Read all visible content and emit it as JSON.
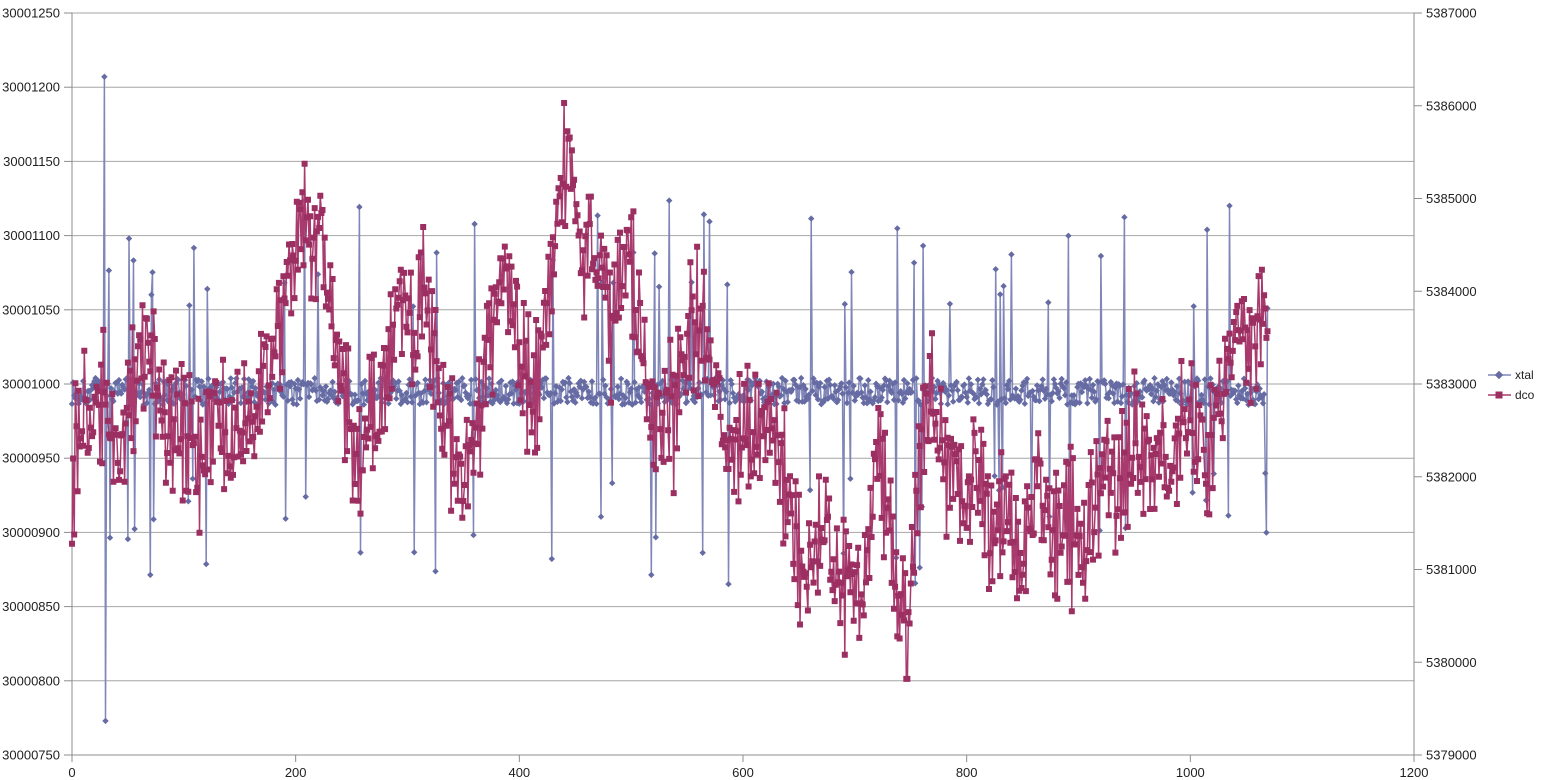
{
  "chart_data": {
    "type": "line",
    "title": "",
    "legend": {
      "position": "right",
      "entries": [
        "xtal",
        "dco"
      ]
    },
    "x_axis": {
      "min": 0,
      "max": 1200,
      "tick_step": 200,
      "ticks": [
        "0",
        "200",
        "400",
        "600",
        "800",
        "1000",
        "1200"
      ],
      "gridlines": false
    },
    "y_axis_left": {
      "series": "xtal",
      "min": 30000750,
      "max": 30001250,
      "tick_step": 50,
      "ticks": [
        "30001250",
        "30001200",
        "30001150",
        "30001100",
        "30001050",
        "30001000",
        "30000950",
        "30000900",
        "30000850",
        "30000800",
        "30000750"
      ],
      "gridlines": true
    },
    "y_axis_right": {
      "series": "dco",
      "min": 5379000,
      "max": 5387000,
      "tick_step": 1000,
      "ticks": [
        "5387000",
        "5386000",
        "5385000",
        "5384000",
        "5383000",
        "5382000",
        "5381000",
        "5380000",
        "5379000"
      ],
      "gridlines": false
    },
    "n_points": 1070,
    "series": [
      {
        "name": "xtal",
        "axis": "left",
        "marker": "diamond",
        "color": "#8087B8",
        "marker_color": "#666CA3",
        "description": "flat noisy band centered near 30000995 (±10) with frequent paired vertical spikes of ±60-130; extreme outlier pair near x=29 reaching 30001207 up and 30000773 down",
        "gen": {
          "baseline": 30000995,
          "noise_amplitude": 9,
          "spike_prob_low_x": 0.03,
          "spike_prob_high_x": 0.055,
          "spike_boost_from": 560,
          "spike_mag_min": 55,
          "spike_mag_max": 130,
          "pair_probability": 0.75,
          "seed": 20121,
          "outliers": [
            {
              "x": 29,
              "value": 30001207
            },
            {
              "x": 30,
              "value": 30000773
            }
          ]
        }
      },
      {
        "name": "dco",
        "axis": "right",
        "marker": "square",
        "color": "#A83A6E",
        "marker_color": "#9C2F62",
        "description": "strongly oscillating series (~±700 point-to-point) around a wandering midline; maximum ~5386030 near x=440, minimum ~5379820 near x=746, broad low region 650-950, rising again after 1030",
        "gen": {
          "osc_amplitude": 620,
          "osc_alternation": -0.38,
          "seed": 77001,
          "clamp_min": 5379820,
          "clamp_max": 5386030,
          "outliers": [
            {
              "x": 440,
              "value": 5386030
            },
            {
              "x": 746,
              "value": 5379820
            }
          ],
          "midline_anchors": [
            [
              0,
              5381800
            ],
            [
              8,
              5382800
            ],
            [
              18,
              5382300
            ],
            [
              30,
              5382900
            ],
            [
              42,
              5382300
            ],
            [
              55,
              5382900
            ],
            [
              65,
              5383400
            ],
            [
              75,
              5383100
            ],
            [
              85,
              5382500
            ],
            [
              95,
              5382700
            ],
            [
              105,
              5382300
            ],
            [
              115,
              5382200
            ],
            [
              128,
              5382800
            ],
            [
              140,
              5382400
            ],
            [
              150,
              5382700
            ],
            [
              160,
              5382300
            ],
            [
              170,
              5382900
            ],
            [
              180,
              5383400
            ],
            [
              190,
              5383900
            ],
            [
              200,
              5384500
            ],
            [
              208,
              5384900
            ],
            [
              215,
              5384500
            ],
            [
              222,
              5384800
            ],
            [
              230,
              5383800
            ],
            [
              240,
              5383100
            ],
            [
              250,
              5382400
            ],
            [
              258,
              5382000
            ],
            [
              266,
              5382900
            ],
            [
              274,
              5382400
            ],
            [
              282,
              5383300
            ],
            [
              290,
              5383600
            ],
            [
              298,
              5384000
            ],
            [
              306,
              5383500
            ],
            [
              314,
              5384000
            ],
            [
              322,
              5383600
            ],
            [
              330,
              5382800
            ],
            [
              338,
              5382400
            ],
            [
              348,
              5381900
            ],
            [
              358,
              5382400
            ],
            [
              368,
              5383000
            ],
            [
              378,
              5383700
            ],
            [
              388,
              5384200
            ],
            [
              396,
              5383800
            ],
            [
              404,
              5383100
            ],
            [
              412,
              5382800
            ],
            [
              420,
              5383400
            ],
            [
              430,
              5384300
            ],
            [
              438,
              5385300
            ],
            [
              444,
              5385500
            ],
            [
              450,
              5384700
            ],
            [
              458,
              5384300
            ],
            [
              466,
              5384600
            ],
            [
              474,
              5384100
            ],
            [
              482,
              5383600
            ],
            [
              490,
              5384200
            ],
            [
              498,
              5384600
            ],
            [
              506,
              5383700
            ],
            [
              514,
              5382900
            ],
            [
              522,
              5382500
            ],
            [
              530,
              5382800
            ],
            [
              538,
              5382600
            ],
            [
              546,
              5383100
            ],
            [
              554,
              5383600
            ],
            [
              562,
              5383800
            ],
            [
              570,
              5383400
            ],
            [
              578,
              5382800
            ],
            [
              586,
              5382400
            ],
            [
              594,
              5382300
            ],
            [
              602,
              5382600
            ],
            [
              610,
              5382400
            ],
            [
              618,
              5382700
            ],
            [
              626,
              5382500
            ],
            [
              634,
              5382100
            ],
            [
              642,
              5381600
            ],
            [
              650,
              5381100
            ],
            [
              658,
              5380900
            ],
            [
              666,
              5381200
            ],
            [
              674,
              5381500
            ],
            [
              682,
              5381100
            ],
            [
              690,
              5380900
            ],
            [
              698,
              5380700
            ],
            [
              706,
              5380800
            ],
            [
              714,
              5381500
            ],
            [
              722,
              5382200
            ],
            [
              730,
              5381500
            ],
            [
              738,
              5380900
            ],
            [
              746,
              5380300
            ],
            [
              752,
              5381200
            ],
            [
              760,
              5382400
            ],
            [
              768,
              5383000
            ],
            [
              776,
              5382500
            ],
            [
              784,
              5381900
            ],
            [
              792,
              5382100
            ],
            [
              800,
              5381700
            ],
            [
              808,
              5382200
            ],
            [
              816,
              5381700
            ],
            [
              824,
              5381300
            ],
            [
              832,
              5381700
            ],
            [
              840,
              5381400
            ],
            [
              848,
              5381100
            ],
            [
              856,
              5381600
            ],
            [
              864,
              5382000
            ],
            [
              872,
              5381600
            ],
            [
              880,
              5381300
            ],
            [
              888,
              5381700
            ],
            [
              896,
              5381400
            ],
            [
              904,
              5381200
            ],
            [
              912,
              5381600
            ],
            [
              920,
              5381900
            ],
            [
              928,
              5382200
            ],
            [
              936,
              5381800
            ],
            [
              944,
              5382100
            ],
            [
              952,
              5382500
            ],
            [
              960,
              5382200
            ],
            [
              968,
              5381900
            ],
            [
              976,
              5382300
            ],
            [
              984,
              5382000
            ],
            [
              992,
              5382500
            ],
            [
              1000,
              5382700
            ],
            [
              1008,
              5382300
            ],
            [
              1016,
              5382100
            ],
            [
              1024,
              5382600
            ],
            [
              1032,
              5383000
            ],
            [
              1040,
              5383400
            ],
            [
              1048,
              5383700
            ],
            [
              1056,
              5383300
            ],
            [
              1062,
              5383700
            ],
            [
              1069,
              5383500
            ]
          ]
        }
      }
    ]
  },
  "colors": {
    "background": "#FFFFFF",
    "gridline": "#A6A6A6",
    "axis": "#8C8C8C",
    "tick_label": "#1F1F1F"
  }
}
